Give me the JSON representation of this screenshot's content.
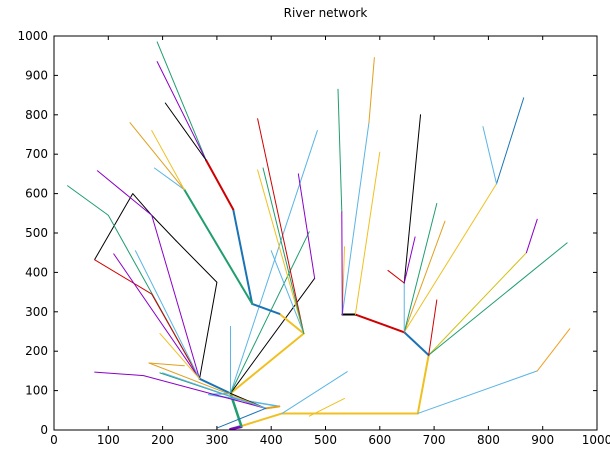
{
  "title": "River network",
  "chart_data": {
    "type": "line",
    "title": "River network",
    "xlabel": "",
    "ylabel": "",
    "xlim": [
      0,
      1000
    ],
    "ylim": [
      0,
      1000
    ],
    "xticks": [
      "0",
      "100",
      "200",
      "300",
      "400",
      "500",
      "600",
      "700",
      "800",
      "900",
      "1000"
    ],
    "yticks": [
      "0",
      "100",
      "200",
      "300",
      "400",
      "500",
      "600",
      "700",
      "800",
      "900",
      "1000"
    ],
    "grid": false,
    "legend": "none",
    "series": [
      {
        "color": "#1f9e6e",
        "width": 2.5,
        "points": [
          [
            325,
            2
          ],
          [
            345,
            10
          ]
        ]
      },
      {
        "color": "#8b00c8",
        "width": 2.5,
        "points": [
          [
            325,
            2
          ],
          [
            345,
            8
          ]
        ]
      },
      {
        "color": "#f0c020",
        "width": 2,
        "points": [
          [
            345,
            10
          ],
          [
            420,
            42
          ],
          [
            670,
            42
          ]
        ]
      },
      {
        "color": "#1f9e6e",
        "width": 2.5,
        "points": [
          [
            345,
            10
          ],
          [
            325,
            93
          ]
        ]
      },
      {
        "color": "#5ab4e6",
        "width": 1,
        "points": [
          [
            420,
            42
          ],
          [
            540,
            148
          ]
        ]
      },
      {
        "color": "#f0c020",
        "width": 1,
        "points": [
          [
            470,
            35
          ],
          [
            535,
            80
          ]
        ]
      },
      {
        "color": "#f0c020",
        "width": 2,
        "points": [
          [
            670,
            42
          ],
          [
            690,
            190
          ]
        ]
      },
      {
        "color": "#5ab4e6",
        "width": 1,
        "points": [
          [
            670,
            42
          ],
          [
            890,
            150
          ]
        ]
      },
      {
        "color": "#f0a020",
        "width": 1,
        "points": [
          [
            890,
            150
          ],
          [
            950,
            257
          ]
        ]
      },
      {
        "color": "#1a73b4",
        "width": 2,
        "points": [
          [
            690,
            190
          ],
          [
            645,
            248
          ]
        ]
      },
      {
        "color": "#d0c010",
        "width": 1,
        "points": [
          [
            690,
            190
          ],
          [
            870,
            450
          ]
        ]
      },
      {
        "color": "#1f9e6e",
        "width": 1,
        "points": [
          [
            690,
            190
          ],
          [
            945,
            475
          ]
        ]
      },
      {
        "color": "#d00000",
        "width": 1,
        "points": [
          [
            690,
            190
          ],
          [
            705,
            330
          ]
        ]
      },
      {
        "color": "#8b00c8",
        "width": 1,
        "points": [
          [
            870,
            450
          ],
          [
            890,
            535
          ]
        ]
      },
      {
        "color": "#f0c020",
        "width": 1,
        "points": [
          [
            645,
            248
          ],
          [
            815,
            625
          ]
        ]
      },
      {
        "color": "#1a73b4",
        "width": 1,
        "points": [
          [
            815,
            625
          ],
          [
            865,
            843
          ]
        ]
      },
      {
        "color": "#5ab4e6",
        "width": 1,
        "points": [
          [
            815,
            625
          ],
          [
            790,
            770
          ]
        ]
      },
      {
        "color": "#e0a020",
        "width": 1,
        "points": [
          [
            645,
            248
          ],
          [
            720,
            530
          ]
        ]
      },
      {
        "color": "#1f9e6e",
        "width": 1,
        "points": [
          [
            645,
            248
          ],
          [
            705,
            575
          ]
        ]
      },
      {
        "color": "#d00000",
        "width": 2,
        "points": [
          [
            645,
            248
          ],
          [
            555,
            293
          ]
        ]
      },
      {
        "color": "#5ab4e6",
        "width": 1,
        "points": [
          [
            645,
            248
          ],
          [
            645,
            373
          ]
        ]
      },
      {
        "color": "#d00000",
        "width": 1,
        "points": [
          [
            645,
            373
          ],
          [
            615,
            405
          ]
        ]
      },
      {
        "color": "#000000",
        "width": 1,
        "points": [
          [
            645,
            373
          ],
          [
            675,
            800
          ]
        ]
      },
      {
        "color": "#8b00c8",
        "width": 1,
        "points": [
          [
            645,
            373
          ],
          [
            665,
            490
          ]
        ]
      },
      {
        "color": "#000000",
        "width": 2,
        "points": [
          [
            555,
            293
          ],
          [
            531,
            293
          ]
        ]
      },
      {
        "color": "#f0c020",
        "width": 1,
        "points": [
          [
            555,
            293
          ],
          [
            600,
            705
          ]
        ]
      },
      {
        "color": "#f0c020",
        "width": 1,
        "points": [
          [
            531,
            293
          ],
          [
            535,
            465
          ]
        ]
      },
      {
        "color": "#5ab4e6",
        "width": 1,
        "points": [
          [
            531,
            293
          ],
          [
            580,
            780
          ]
        ]
      },
      {
        "color": "#e0a020",
        "width": 1,
        "points": [
          [
            580,
            780
          ],
          [
            590,
            945
          ]
        ]
      },
      {
        "color": "#8b00c8",
        "width": 1,
        "points": [
          [
            531,
            293
          ],
          [
            530,
            555
          ]
        ]
      },
      {
        "color": "#1f9e6e",
        "width": 1,
        "points": [
          [
            530,
            555
          ],
          [
            523,
            865
          ]
        ]
      },
      {
        "color": "#1a73b4",
        "width": 2,
        "points": [
          [
            325,
            93
          ],
          [
            268,
            130
          ]
        ]
      },
      {
        "color": "#f0c020",
        "width": 2,
        "points": [
          [
            325,
            93
          ],
          [
            460,
            245
          ]
        ]
      },
      {
        "color": "#5ab4e6",
        "width": 1,
        "points": [
          [
            325,
            93
          ],
          [
            325,
            263
          ]
        ]
      },
      {
        "color": "#000000",
        "width": 1,
        "points": [
          [
            325,
            93
          ],
          [
            480,
            385
          ]
        ]
      },
      {
        "color": "#5ab4e6",
        "width": 1,
        "points": [
          [
            325,
            93
          ],
          [
            485,
            760
          ]
        ]
      },
      {
        "color": "#1f9e6e",
        "width": 1,
        "points": [
          [
            325,
            93
          ],
          [
            470,
            503
          ]
        ]
      },
      {
        "color": "#5ab4e6",
        "width": 1.5,
        "points": [
          [
            325,
            93
          ],
          [
            285,
            90
          ],
          [
            415,
            60
          ]
        ]
      },
      {
        "color": "#e0a020",
        "width": 2,
        "points": [
          [
            415,
            60
          ],
          [
            390,
            55
          ]
        ]
      },
      {
        "color": "#8b00c8",
        "width": 1,
        "points": [
          [
            480,
            385
          ],
          [
            450,
            650
          ]
        ]
      },
      {
        "color": "#d00000",
        "width": 1,
        "points": [
          [
            460,
            245
          ],
          [
            375,
            790
          ]
        ]
      },
      {
        "color": "#f0c020",
        "width": 2,
        "points": [
          [
            460,
            245
          ],
          [
            415,
            295
          ]
        ]
      },
      {
        "color": "#5ab4e6",
        "width": 1,
        "points": [
          [
            460,
            245
          ],
          [
            400,
            455
          ]
        ]
      },
      {
        "color": "#1a73b4",
        "width": 2,
        "points": [
          [
            415,
            295
          ],
          [
            365,
            320
          ]
        ]
      },
      {
        "color": "#1a73b4",
        "width": 2,
        "points": [
          [
            365,
            320
          ],
          [
            330,
            560
          ]
        ]
      },
      {
        "color": "#1f9e6e",
        "width": 2,
        "points": [
          [
            365,
            320
          ],
          [
            240,
            610
          ]
        ]
      },
      {
        "color": "#d00000",
        "width": 2,
        "points": [
          [
            330,
            560
          ],
          [
            280,
            685
          ]
        ]
      },
      {
        "color": "#1f9e6e",
        "width": 1,
        "points": [
          [
            280,
            685
          ],
          [
            190,
            985
          ]
        ]
      },
      {
        "color": "#8b00c8",
        "width": 1,
        "points": [
          [
            280,
            685
          ],
          [
            190,
            935
          ]
        ]
      },
      {
        "color": "#000000",
        "width": 1,
        "points": [
          [
            280,
            685
          ],
          [
            205,
            830
          ]
        ]
      },
      {
        "color": "#f0c020",
        "width": 1,
        "points": [
          [
            460,
            245
          ],
          [
            375,
            660
          ]
        ]
      },
      {
        "color": "#1f9e6e",
        "width": 1,
        "points": [
          [
            460,
            245
          ],
          [
            385,
            665
          ]
        ]
      },
      {
        "color": "#5ab4e6",
        "width": 1,
        "points": [
          [
            240,
            610
          ],
          [
            185,
            665
          ]
        ]
      },
      {
        "color": "#e0a020",
        "width": 1,
        "points": [
          [
            240,
            610
          ],
          [
            140,
            780
          ]
        ]
      },
      {
        "color": "#f0c020",
        "width": 1,
        "points": [
          [
            240,
            610
          ],
          [
            180,
            760
          ]
        ]
      },
      {
        "color": "#000000",
        "width": 1,
        "points": [
          [
            268,
            130
          ],
          [
            300,
            375
          ],
          [
            225,
            480
          ]
        ]
      },
      {
        "color": "#000000",
        "width": 1,
        "points": [
          [
            225,
            480
          ],
          [
            180,
            545
          ],
          [
            145,
            600
          ],
          [
            75,
            433
          ]
        ]
      },
      {
        "color": "#8b00c8",
        "width": 1,
        "points": [
          [
            268,
            130
          ],
          [
            180,
            545
          ],
          [
            80,
            658
          ]
        ]
      },
      {
        "color": "#1f9e6e",
        "width": 1,
        "points": [
          [
            268,
            130
          ],
          [
            100,
            545
          ],
          [
            25,
            620
          ]
        ]
      },
      {
        "color": "#d00000",
        "width": 1,
        "points": [
          [
            268,
            130
          ],
          [
            180,
            345
          ],
          [
            75,
            432
          ]
        ]
      },
      {
        "color": "#8b00c8",
        "width": 1,
        "points": [
          [
            268,
            130
          ],
          [
            110,
            447
          ]
        ]
      },
      {
        "color": "#5ab4e6",
        "width": 1,
        "points": [
          [
            268,
            130
          ],
          [
            150,
            455
          ]
        ]
      },
      {
        "color": "#f0c020",
        "width": 1,
        "points": [
          [
            268,
            130
          ],
          [
            195,
            245
          ]
        ]
      },
      {
        "color": "#000000",
        "width": 1,
        "points": [
          [
            390,
            55
          ],
          [
            325,
            93
          ]
        ]
      },
      {
        "color": "#e0a020",
        "width": 1,
        "points": [
          [
            390,
            55
          ],
          [
            175,
            170
          ]
        ]
      },
      {
        "color": "#1f9e6e",
        "width": 1,
        "points": [
          [
            390,
            55
          ],
          [
            195,
            145
          ]
        ]
      },
      {
        "color": "#8b00c8",
        "width": 1,
        "points": [
          [
            390,
            55
          ],
          [
            165,
            138
          ],
          [
            75,
            147
          ]
        ]
      },
      {
        "color": "#e0a020",
        "width": 1,
        "points": [
          [
            175,
            170
          ],
          [
            240,
            163
          ]
        ]
      },
      {
        "color": "#5ab4e6",
        "width": 1,
        "points": [
          [
            390,
            55
          ],
          [
            200,
            145
          ]
        ]
      },
      {
        "color": "#1a73b4",
        "width": 1,
        "points": [
          [
            390,
            55
          ],
          [
            300,
            5
          ]
        ]
      }
    ]
  }
}
